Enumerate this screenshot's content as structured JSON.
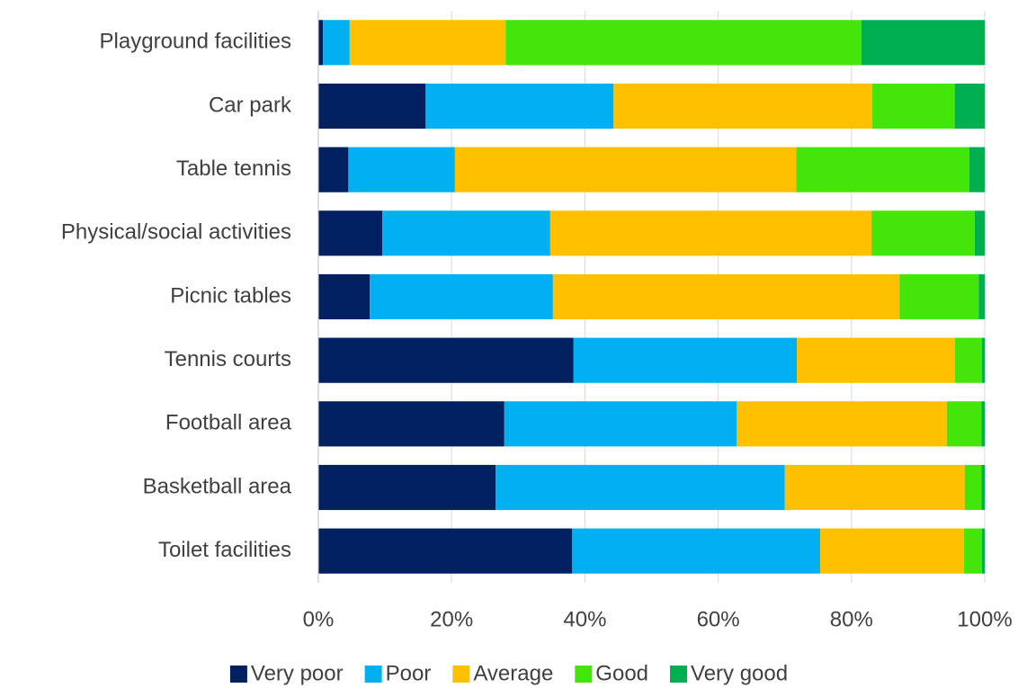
{
  "chart_data": {
    "type": "stacked_barh",
    "categories": [
      "Playground facilities",
      "Car park",
      "Table tennis",
      "Physical/social activities",
      "Picnic tables",
      "Tennis courts",
      "Football area",
      "Basketball area",
      "Toilet facilities"
    ],
    "series": [
      {
        "name": "Very poor",
        "color": "#002060",
        "values": [
          0.7,
          16.1,
          4.5,
          9.6,
          7.7,
          38.3,
          27.9,
          26.6,
          38.1
        ]
      },
      {
        "name": "Poor",
        "color": "#00b0f0",
        "values": [
          4.0,
          28.2,
          16.0,
          25.2,
          27.5,
          33.5,
          34.9,
          43.4,
          37.2
        ]
      },
      {
        "name": "Average",
        "color": "#ffc000",
        "values": [
          23.4,
          38.8,
          51.2,
          48.2,
          52.0,
          23.7,
          31.5,
          27.0,
          21.6
        ]
      },
      {
        "name": "Good",
        "color": "#44e60a",
        "values": [
          53.4,
          12.4,
          26.0,
          15.5,
          11.9,
          4.1,
          5.2,
          2.5,
          2.7
        ]
      },
      {
        "name": "Very good",
        "color": "#00b050",
        "values": [
          18.5,
          4.5,
          2.3,
          1.5,
          0.9,
          0.4,
          0.5,
          0.5,
          0.4
        ]
      }
    ],
    "xlim": [
      0,
      100
    ],
    "xticks": [
      {
        "value": 0,
        "label": "0%"
      },
      {
        "value": 20,
        "label": "20%"
      },
      {
        "value": 40,
        "label": "40%"
      },
      {
        "value": 60,
        "label": "60%"
      },
      {
        "value": 80,
        "label": "80%"
      },
      {
        "value": 100,
        "label": "100%"
      }
    ],
    "grid": true,
    "legend": "bottom"
  }
}
